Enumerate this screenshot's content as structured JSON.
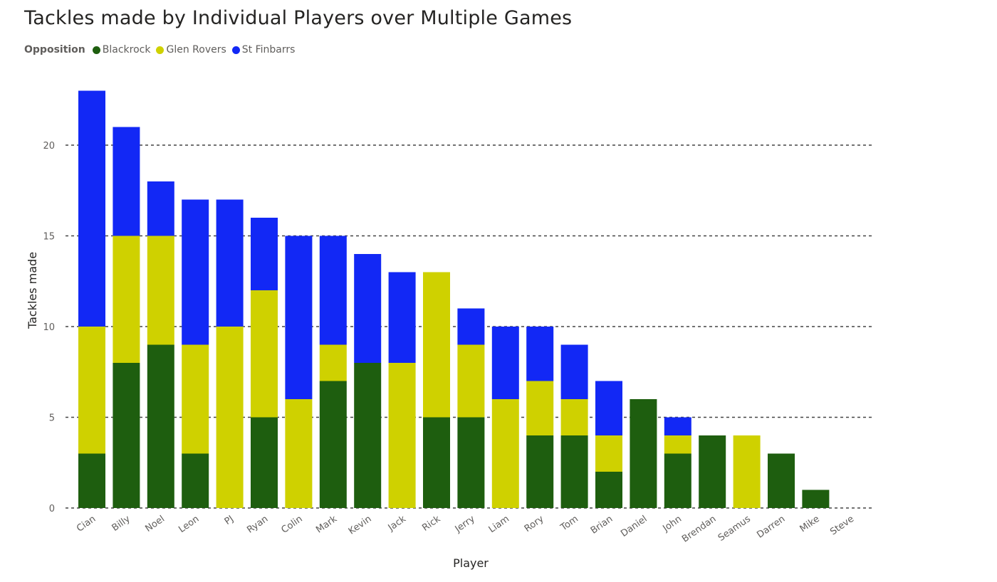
{
  "chart_data": {
    "type": "bar",
    "stacked": true,
    "title": "Tackles made by Individual Players over Multiple Games",
    "xlabel": "Player",
    "ylabel": "Tackles made",
    "legend_title": "Opposition",
    "legend_position": "top-left",
    "ylim": [
      0,
      23
    ],
    "yticks": [
      0,
      5,
      10,
      15,
      20
    ],
    "grid": true,
    "categories": [
      "Cian",
      "Billy",
      "Noel",
      "Leon",
      "PJ",
      "Ryan",
      "Colin",
      "Mark",
      "Kevin",
      "Jack",
      "Rick",
      "Jerry",
      "Liam",
      "Rory",
      "Tom",
      "Brian",
      "Daniel",
      "John",
      "Brendan",
      "Seamus",
      "Darren",
      "Mike",
      "Steve"
    ],
    "series": [
      {
        "name": "Blackrock",
        "color": "#1e5e0f",
        "values": [
          3,
          8,
          9,
          3,
          0,
          5,
          0,
          7,
          8,
          0,
          5,
          5,
          0,
          4,
          4,
          2,
          6,
          3,
          4,
          0,
          3,
          1,
          0
        ]
      },
      {
        "name": "Glen Rovers",
        "color": "#cfd100",
        "values": [
          7,
          7,
          6,
          6,
          10,
          7,
          6,
          2,
          0,
          8,
          8,
          4,
          6,
          3,
          2,
          2,
          0,
          1,
          0,
          4,
          0,
          0,
          0
        ]
      },
      {
        "name": "St Finbarrs",
        "color": "#1228f5",
        "values": [
          13,
          6,
          3,
          8,
          7,
          4,
          9,
          6,
          6,
          5,
          0,
          2,
          4,
          3,
          3,
          3,
          0,
          1,
          0,
          0,
          0,
          0,
          0
        ]
      }
    ]
  }
}
